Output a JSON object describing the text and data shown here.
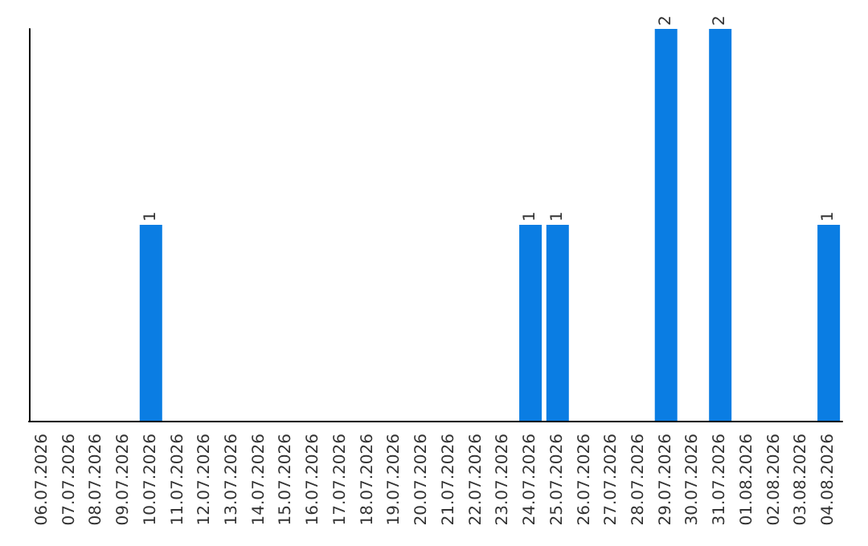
{
  "chart_data": {
    "type": "bar",
    "categories": [
      "06.07.2026",
      "07.07.2026",
      "08.07.2026",
      "09.07.2026",
      "10.07.2026",
      "11.07.2026",
      "12.07.2026",
      "13.07.2026",
      "14.07.2026",
      "15.07.2026",
      "16.07.2026",
      "17.07.2026",
      "18.07.2026",
      "19.07.2026",
      "20.07.2026",
      "21.07.2026",
      "22.07.2026",
      "23.07.2026",
      "24.07.2026",
      "25.07.2026",
      "26.07.2026",
      "27.07.2026",
      "28.07.2026",
      "29.07.2026",
      "30.07.2026",
      "31.07.2026",
      "01.08.2026",
      "02.08.2026",
      "03.08.2026",
      "04.08.2026"
    ],
    "values": [
      0,
      0,
      0,
      0,
      1,
      0,
      0,
      0,
      0,
      0,
      0,
      0,
      0,
      0,
      0,
      0,
      0,
      0,
      1,
      1,
      0,
      0,
      0,
      2,
      0,
      2,
      0,
      0,
      0,
      1
    ],
    "color": "#0a7de3",
    "ylim": [
      0,
      2
    ],
    "value_labels": [
      null,
      null,
      null,
      null,
      "1",
      null,
      null,
      null,
      null,
      null,
      null,
      null,
      null,
      null,
      null,
      null,
      null,
      null,
      "1",
      "1",
      null,
      null,
      null,
      "2",
      null,
      "2",
      null,
      null,
      null,
      "1"
    ],
    "tick_labels": "x",
    "grid": false
  }
}
